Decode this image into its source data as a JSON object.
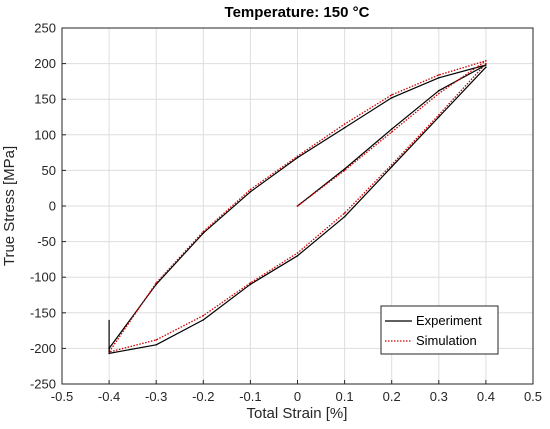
{
  "chart_data": {
    "type": "line",
    "title": "Temperature: 150 °C",
    "xlabel": "Total Strain [%]",
    "ylabel": "True Stress [MPa]",
    "xlim": [
      -0.5,
      0.5
    ],
    "ylim": [
      -250,
      250
    ],
    "xticks": [
      "-0.5",
      "-0.4",
      "-0.3",
      "-0.2",
      "-0.1",
      "0",
      "0.1",
      "0.2",
      "0.3",
      "0.4",
      "0.5"
    ],
    "yticks": [
      "-250",
      "-200",
      "-150",
      "-100",
      "-50",
      "0",
      "50",
      "100",
      "150",
      "200",
      "250"
    ],
    "grid": true,
    "legend_position": "bottom-right",
    "series": [
      {
        "name": "Experiment",
        "color": "#000000",
        "style": "solid",
        "x": [
          0.0,
          0.1,
          0.2,
          0.3,
          0.4,
          0.3,
          0.2,
          0.1,
          0.0,
          -0.1,
          -0.2,
          -0.3,
          -0.4,
          -0.4,
          -0.3,
          -0.2,
          -0.1,
          0.0,
          0.1,
          0.2,
          0.3,
          0.4
        ],
        "y": [
          0,
          52,
          108,
          162,
          198,
          180,
          152,
          110,
          68,
          20,
          -38,
          -110,
          -200,
          -207,
          -195,
          -160,
          -110,
          -70,
          -15,
          55,
          125,
          195
        ]
      },
      {
        "name": "Simulation",
        "color": "#cc0000",
        "style": "dotted",
        "x": [
          0.0,
          0.1,
          0.2,
          0.3,
          0.4,
          0.3,
          0.2,
          0.1,
          0.0,
          -0.1,
          -0.2,
          -0.3,
          -0.4,
          -0.3,
          -0.2,
          -0.1,
          0.0,
          0.1,
          0.2,
          0.3,
          0.4
        ],
        "y": [
          0,
          50,
          104,
          158,
          204,
          184,
          156,
          115,
          70,
          23,
          -36,
          -108,
          -205,
          -188,
          -154,
          -108,
          -66,
          -10,
          58,
          128,
          200
        ]
      }
    ],
    "annotations": [
      {
        "type": "vertical-segment",
        "x": -0.4,
        "y": [
          -205,
          -160
        ]
      }
    ]
  }
}
